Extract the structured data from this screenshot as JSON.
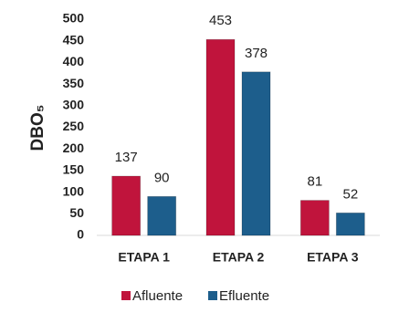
{
  "chart_data": {
    "type": "bar",
    "y_label": "DBO₅",
    "categories": [
      "ETAPA 1",
      "ETAPA 2",
      "ETAPA 3"
    ],
    "series": [
      {
        "name": "Afluente",
        "color": "#c0143c",
        "values": [
          137,
          453,
          81
        ]
      },
      {
        "name": "Efluente",
        "color": "#1d5e8c",
        "values": [
          90,
          378,
          52
        ]
      }
    ],
    "ylim": [
      0,
      500
    ],
    "yticks": [
      0,
      50,
      100,
      150,
      200,
      250,
      300,
      350,
      400,
      450,
      500
    ],
    "grid": false,
    "legend": "bottom"
  }
}
